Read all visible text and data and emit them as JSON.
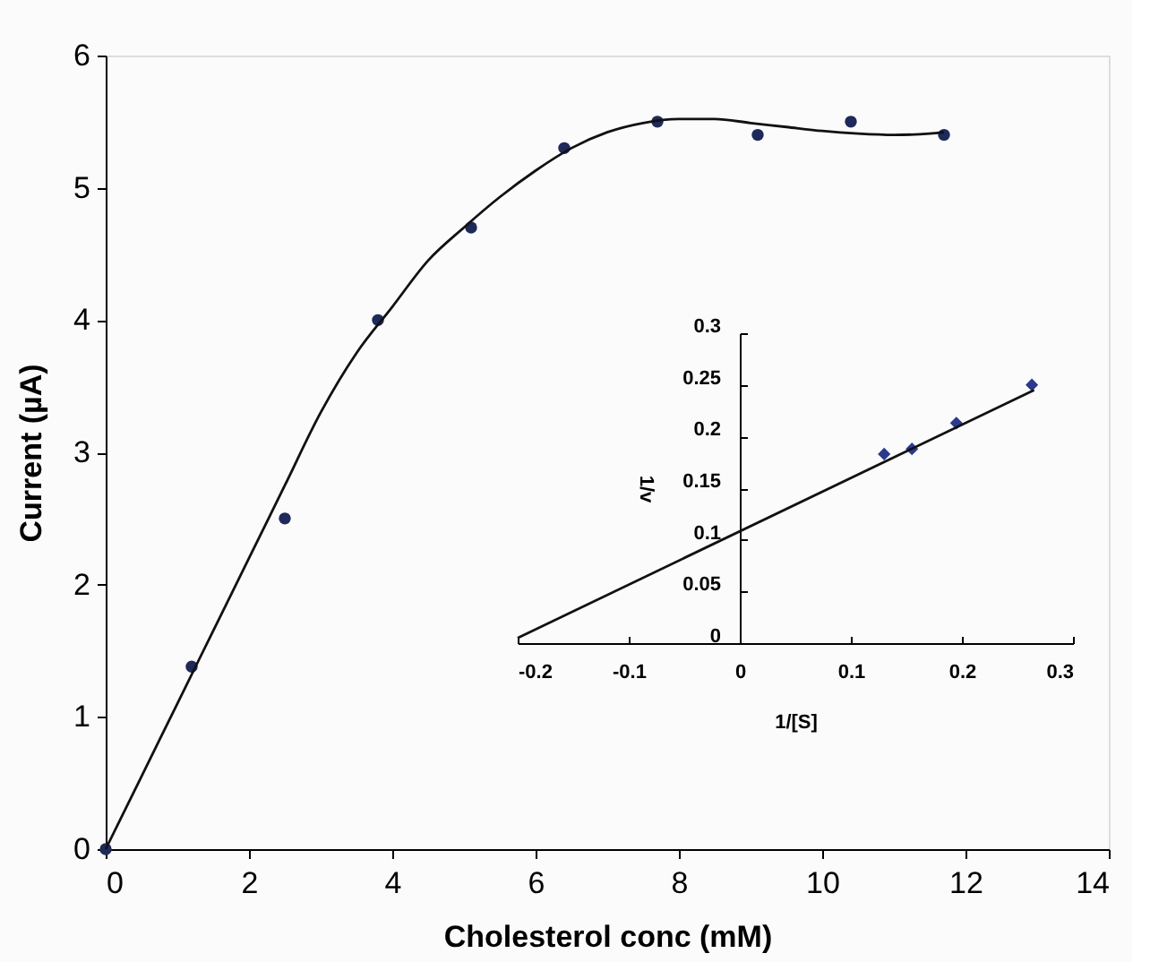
{
  "chart_data": [
    {
      "type": "scatter",
      "xlabel": "Cholesterol conc (mM)",
      "ylabel": "Current (µA)",
      "xlim": [
        0,
        14
      ],
      "ylim": [
        0,
        6
      ],
      "xticks": [
        0,
        2,
        4,
        6,
        8,
        10,
        12,
        14
      ],
      "yticks": [
        0,
        1,
        2,
        3,
        4,
        5,
        6
      ],
      "series": [
        {
          "color": "#1f2a5a",
          "marker": "circle",
          "x": [
            0,
            1.2,
            2.5,
            3.8,
            5.1,
            6.4,
            7.7,
            9.1,
            10.4,
            11.7
          ],
          "values": [
            0,
            1.38,
            2.5,
            4.0,
            4.7,
            5.3,
            5.5,
            5.4,
            5.5,
            5.4
          ]
        },
        {
          "type": "line",
          "color": "#111111",
          "line_style": "solid",
          "marker": "none",
          "x": [
            0,
            0.5,
            1,
            1.5,
            2,
            2.5,
            3,
            3.5,
            4,
            4.5,
            5,
            5.5,
            6,
            6.5,
            7,
            7.5,
            8,
            8.5,
            9,
            9.5,
            10,
            10.5,
            11,
            11.5,
            11.7
          ],
          "values": [
            0,
            0.55,
            1.1,
            1.65,
            2.2,
            2.75,
            3.3,
            3.75,
            4.1,
            4.45,
            4.7,
            4.93,
            5.13,
            5.3,
            5.42,
            5.49,
            5.52,
            5.52,
            5.49,
            5.46,
            5.43,
            5.41,
            5.4,
            5.41,
            5.42
          ]
        }
      ]
    },
    {
      "type": "scatter",
      "xlabel": "1/[S]",
      "ylabel": "1/v",
      "xlim": [
        -0.2,
        0.3
      ],
      "ylim": [
        0,
        0.3
      ],
      "xticks": [
        -0.2,
        -0.1,
        0,
        0.1,
        0.2,
        0.3
      ],
      "yticks": [
        0,
        0.05,
        0.1,
        0.15,
        0.2,
        0.25,
        0.3
      ],
      "series": [
        {
          "color": "#2b3a8c",
          "marker": "diamond",
          "x": [
            0.13,
            0.155,
            0.195,
            0.263
          ],
          "values": [
            0.183,
            0.188,
            0.213,
            0.25
          ]
        },
        {
          "type": "line",
          "color": "#111111",
          "line_style": "solid",
          "marker": "none",
          "x": [
            -0.2,
            0.265
          ],
          "values": [
            0.005,
            0.245
          ]
        }
      ]
    }
  ]
}
